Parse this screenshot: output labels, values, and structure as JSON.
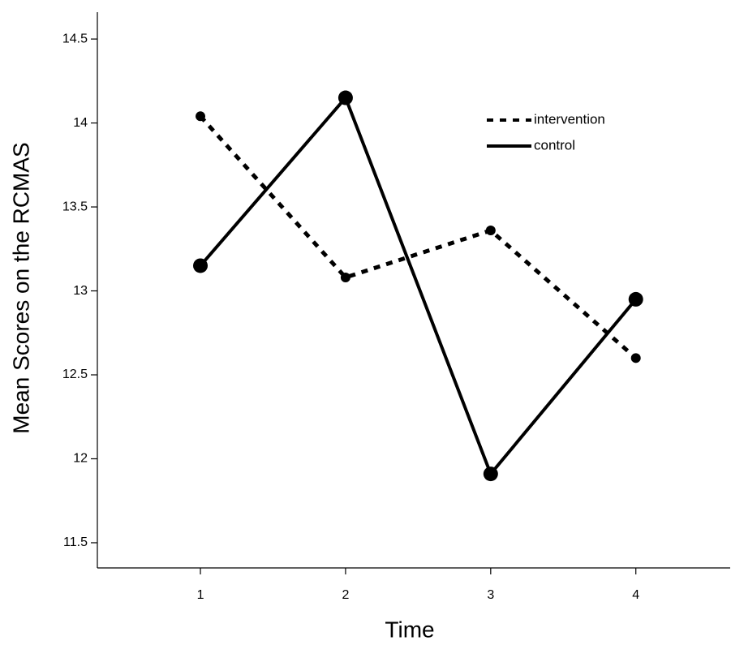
{
  "chart_data": {
    "type": "line",
    "xlabel": "Time",
    "ylabel": "Mean Scores on the RCMAS",
    "x": [
      1,
      2,
      3,
      4
    ],
    "xlim": [
      0.29,
      4.65
    ],
    "xticks": [
      1,
      2,
      3,
      4
    ],
    "ylim": [
      11.35,
      14.66
    ],
    "yticks": [
      11.5,
      12,
      12.5,
      13,
      13.5,
      14,
      14.5
    ],
    "series": [
      {
        "name": "intervention",
        "color": "#000000",
        "style": "dotted",
        "values": [
          14.04,
          13.08,
          13.36,
          12.6
        ]
      },
      {
        "name": "control",
        "color": "#000000",
        "style": "solid",
        "values": [
          13.15,
          14.15,
          11.91,
          12.95
        ]
      }
    ]
  }
}
